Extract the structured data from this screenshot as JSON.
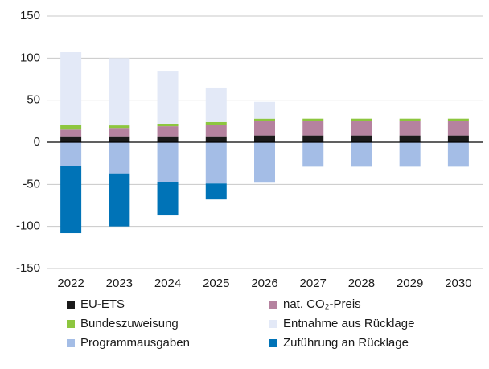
{
  "chart_data": {
    "type": "bar",
    "stacked": true,
    "categories": [
      "2022",
      "2023",
      "2024",
      "2025",
      "2026",
      "2027",
      "2028",
      "2029",
      "2030"
    ],
    "series": [
      {
        "name": "EU-ETS",
        "color": "#1a1a1a",
        "values": [
          7,
          7,
          7,
          7,
          8,
          8,
          8,
          8,
          8
        ]
      },
      {
        "name": "nat. CO₂-Preis",
        "color": "#b5829f",
        "values": [
          8,
          10,
          12,
          14,
          17,
          17,
          17,
          17,
          17
        ]
      },
      {
        "name": "Bundeszuweisung",
        "color": "#8dc63f",
        "values": [
          6,
          3,
          3,
          3,
          3,
          3,
          3,
          3,
          3
        ]
      },
      {
        "name": "Entnahme aus Rücklage",
        "color": "#e3e9f7",
        "values": [
          86,
          80,
          63,
          41,
          20,
          0,
          0,
          0,
          0
        ]
      },
      {
        "name": "Programmausgaben",
        "color": "#a4bde6",
        "values": [
          -28,
          -37,
          -47,
          -49,
          -48,
          -29,
          -29,
          -29,
          -29
        ]
      },
      {
        "name": "Zuführung an Rücklage",
        "color": "#0073b7",
        "values": [
          -80,
          -63,
          -40,
          -19,
          0,
          0,
          0,
          0,
          0
        ]
      }
    ],
    "ylim": [
      -150,
      150
    ],
    "yticks": [
      -150,
      -100,
      -50,
      0,
      50,
      100,
      150
    ],
    "grid": true,
    "legend": "bottom"
  }
}
